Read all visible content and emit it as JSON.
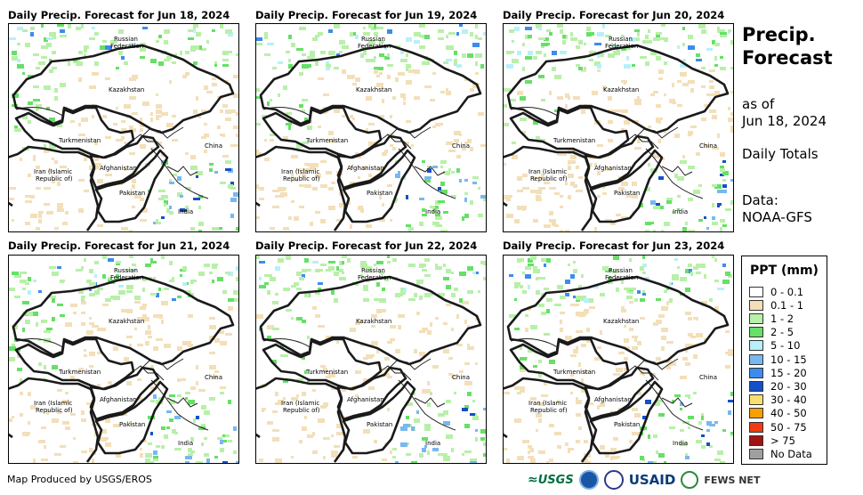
{
  "panels": [
    {
      "title": "Daily Precip. Forecast for Jun 18, 2024"
    },
    {
      "title": "Daily Precip. Forecast for Jun 19, 2024"
    },
    {
      "title": "Daily Precip. Forecast for Jun 20, 2024"
    },
    {
      "title": "Daily Precip. Forecast for Jun 21, 2024"
    },
    {
      "title": "Daily Precip. Forecast for Jun 22, 2024"
    },
    {
      "title": "Daily Precip. Forecast for Jun 23, 2024"
    }
  ],
  "country_labels": {
    "russia_line1": "Russian",
    "russia_line2": "Federation",
    "kazakhstan": "Kazakhstan",
    "turkmenistan": "Turkmenistan",
    "china": "China",
    "iran_line1": "Iran  (Islamic",
    "iran_line2": "Republic of)",
    "afghanistan": "Afghanistan",
    "pakistan": "Pakistan",
    "india": "India"
  },
  "sidebar": {
    "title_line1": "Precip.",
    "title_line2": "Forecast",
    "as_of_line1": "as of",
    "as_of_line2": "Jun 18, 2024",
    "totals": "Daily Totals",
    "data_line1": "Data:",
    "data_line2": "NOAA-GFS"
  },
  "legend": {
    "title": "PPT (mm)",
    "items": [
      {
        "label": "0 - 0.1",
        "color": "#ffffff"
      },
      {
        "label": "0.1 - 1",
        "color": "#f3dfb8"
      },
      {
        "label": "1 - 2",
        "color": "#b8f0a8"
      },
      {
        "label": "2 - 5",
        "color": "#66e066"
      },
      {
        "label": "5 - 10",
        "color": "#b8f0f8"
      },
      {
        "label": "10 - 15",
        "color": "#78b8f0"
      },
      {
        "label": "15 - 20",
        "color": "#3c8cf0"
      },
      {
        "label": "20 - 30",
        "color": "#1450c8"
      },
      {
        "label": "30 - 40",
        "color": "#f8e070"
      },
      {
        "label": "40 - 50",
        "color": "#f8a000"
      },
      {
        "label": "50 - 75",
        "color": "#f03c14"
      },
      {
        "label": "> 75",
        "color": "#a01414"
      },
      {
        "label": "No Data",
        "color": "#a0a0a0"
      }
    ]
  },
  "footer": {
    "credit": "Map Produced by USGS/EROS"
  },
  "logos": {
    "usgs": "USGS",
    "usaid": "USAID",
    "fews": "FEWS NET"
  }
}
